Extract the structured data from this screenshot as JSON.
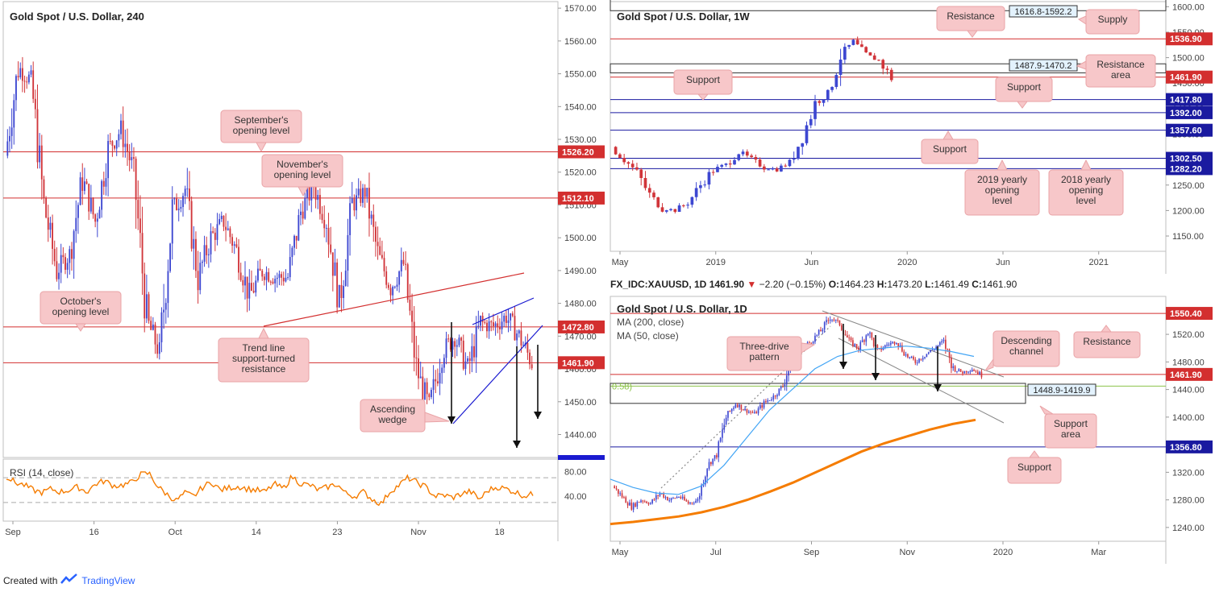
{
  "footer": {
    "created_with": "Created with",
    "brand": "TradingView"
  },
  "colors": {
    "up": "#3d47d1",
    "down": "#d1353a",
    "resistance": "#d32f2f",
    "support": "#1a1aa0",
    "rsi": "#f57c00",
    "ma200": "#f57c00",
    "ma50": "#42a5f5",
    "fib": "#8bc34a",
    "note_fill": "#f7c7c9"
  },
  "chart_data": [
    {
      "id": "h4",
      "type": "candlestick",
      "title": "Gold Spot / U.S. Dollar, 240",
      "ylim": [
        1433,
        1572
      ],
      "y_ticks": [
        "1570.00",
        "1560.00",
        "1550.00",
        "1540.00",
        "1530.00",
        "1520.00",
        "1510.00",
        "1500.00",
        "1490.00",
        "1480.00",
        "1470.00",
        "1460.00",
        "1450.00",
        "1440.00"
      ],
      "x_ticks": [
        "Sep",
        "16",
        "Oct",
        "14",
        "23",
        "Nov",
        "18"
      ],
      "price_path": [
        1525,
        1552,
        1548,
        1510,
        1490,
        1495,
        1518,
        1505,
        1527,
        1533,
        1520,
        1475,
        1465,
        1508,
        1515,
        1488,
        1500,
        1505,
        1496,
        1482,
        1490,
        1488,
        1488,
        1508,
        1516,
        1505,
        1480,
        1510,
        1514,
        1495,
        1485,
        1492,
        1460,
        1448,
        1465,
        1470,
        1460,
        1474,
        1473,
        1476,
        1470,
        1462
      ],
      "levels": [
        {
          "label": "1526.20",
          "value": 1526.2,
          "color": "#d32f2f"
        },
        {
          "label": "1512.10",
          "value": 1512.1,
          "color": "#d32f2f"
        },
        {
          "label": "1472.80",
          "value": 1472.8,
          "color": "#d32f2f"
        },
        {
          "label": "1461.90",
          "value": 1461.9,
          "color": "#d32f2f"
        }
      ],
      "annotations": [
        "September's opening level",
        "November's opening level",
        "October's opening level",
        "Trend line support-turned resistance",
        "Ascending wedge"
      ],
      "rsi": {
        "label": "RSI (14, close)",
        "ticks": [
          "80.00",
          "40.00"
        ],
        "levels": [
          70,
          30
        ],
        "ylim": [
          0,
          100
        ],
        "values": [
          72,
          62,
          58,
          50,
          46,
          52,
          47,
          50,
          55,
          47,
          60,
          65,
          57,
          58,
          62,
          75,
          77,
          55,
          43,
          33,
          45,
          40,
          55,
          63,
          50,
          54,
          56,
          52,
          50,
          47,
          60,
          52,
          72,
          60,
          58,
          50,
          55,
          60,
          45,
          40,
          47,
          35,
          28,
          48,
          58,
          70,
          62,
          55,
          40,
          42,
          38,
          44,
          48,
          35,
          50,
          55,
          52,
          47,
          41,
          43
        ]
      }
    },
    {
      "id": "w1",
      "type": "candlestick",
      "title": "Gold Spot / U.S. Dollar, 1W",
      "ylim": [
        1120,
        1610
      ],
      "y_ticks": [
        "1600.00",
        "1550.00",
        "1500.00",
        "1450.00",
        "1400.00",
        "1350.00",
        "1300.00",
        "1250.00",
        "1200.00",
        "1150.00"
      ],
      "x_ticks": [
        "May",
        "2019",
        "Jun",
        "2020",
        "Jun",
        "2021"
      ],
      "price_path": [
        1325,
        1300,
        1275,
        1230,
        1205,
        1200,
        1215,
        1250,
        1280,
        1290,
        1315,
        1300,
        1285,
        1280,
        1295,
        1345,
        1410,
        1430,
        1505,
        1530,
        1505,
        1495,
        1460
      ],
      "zones": [
        {
          "label": "1616.8-1592.2",
          "from": 1592.2,
          "to": 1616.8
        },
        {
          "label": "1487.9-1470.2",
          "from": 1470.2,
          "to": 1487.9
        }
      ],
      "levels": [
        {
          "label": "1536.90",
          "value": 1536.9,
          "color": "#d32f2f"
        },
        {
          "label": "1461.90",
          "value": 1461.9,
          "color": "#d32f2f"
        },
        {
          "label": "1417.80",
          "value": 1417.8,
          "color": "#1a1aa0"
        },
        {
          "label": "1392.00",
          "value": 1392.0,
          "color": "#1a1aa0"
        },
        {
          "label": "1357.60",
          "value": 1357.6,
          "color": "#1a1aa0"
        },
        {
          "label": "1302.50",
          "value": 1302.5,
          "color": "#1a1aa0"
        },
        {
          "label": "1282.20",
          "value": 1282.2,
          "color": "#1a1aa0"
        }
      ],
      "annotations": [
        "Resistance",
        "Supply",
        "Resistance area",
        "Support",
        "Support",
        "Support",
        "2019 yearly opening level",
        "2018 yearly opening level"
      ]
    },
    {
      "id": "d1",
      "type": "candlestick",
      "symbol_bar": {
        "symbol": "FX_IDC:XAUUSD, 1D",
        "last": "1461.90",
        "change": "−2.20 (−0.15%)",
        "o": "1464.23",
        "h": "1473.20",
        "l": "1461.49",
        "c": "1461.90"
      },
      "title": "Gold Spot / U.S. Dollar, 1D",
      "legend": [
        "MA (200, close)",
        "MA (50, close)"
      ],
      "ylim": [
        1220,
        1575
      ],
      "y_ticks": [
        "1520.00",
        "1480.00",
        "1440.00",
        "1400.00",
        "1360.00",
        "1320.00",
        "1280.00",
        "1240.00"
      ],
      "x_ticks": [
        "May",
        "Jul",
        "Sep",
        "Nov",
        "2020",
        "Mar"
      ],
      "fib_label": "0.58)",
      "price_path": [
        1300,
        1285,
        1270,
        1280,
        1275,
        1290,
        1280,
        1285,
        1275,
        1280,
        1330,
        1345,
        1400,
        1420,
        1410,
        1405,
        1420,
        1430,
        1445,
        1490,
        1500,
        1510,
        1525,
        1545,
        1535,
        1510,
        1500,
        1525,
        1495,
        1505,
        1510,
        1490,
        1480,
        1490,
        1500,
        1510,
        1470,
        1465,
        1470,
        1461
      ],
      "ma200": [
        1245,
        1248,
        1252,
        1256,
        1262,
        1270,
        1280,
        1292,
        1305,
        1320,
        1335,
        1350,
        1362,
        1372,
        1382,
        1390,
        1396
      ],
      "ma50": [
        1310,
        1298,
        1290,
        1288,
        1300,
        1330,
        1370,
        1410,
        1440,
        1470,
        1488,
        1497,
        1500,
        1503,
        1500,
        1495,
        1488
      ],
      "zones": [
        {
          "label": "1448.9-1419.9",
          "from": 1419.9,
          "to": 1448.9
        }
      ],
      "levels": [
        {
          "label": "1550.40",
          "value": 1550.4,
          "color": "#d32f2f"
        },
        {
          "label": "1461.90",
          "value": 1461.9,
          "color": "#d32f2f"
        },
        {
          "label": "1356.80",
          "value": 1356.8,
          "color": "#1a1aa0"
        }
      ],
      "annotations": [
        "Three-drive pattern",
        "Descending channel",
        "Resistance",
        "Support area",
        "Support"
      ]
    }
  ]
}
